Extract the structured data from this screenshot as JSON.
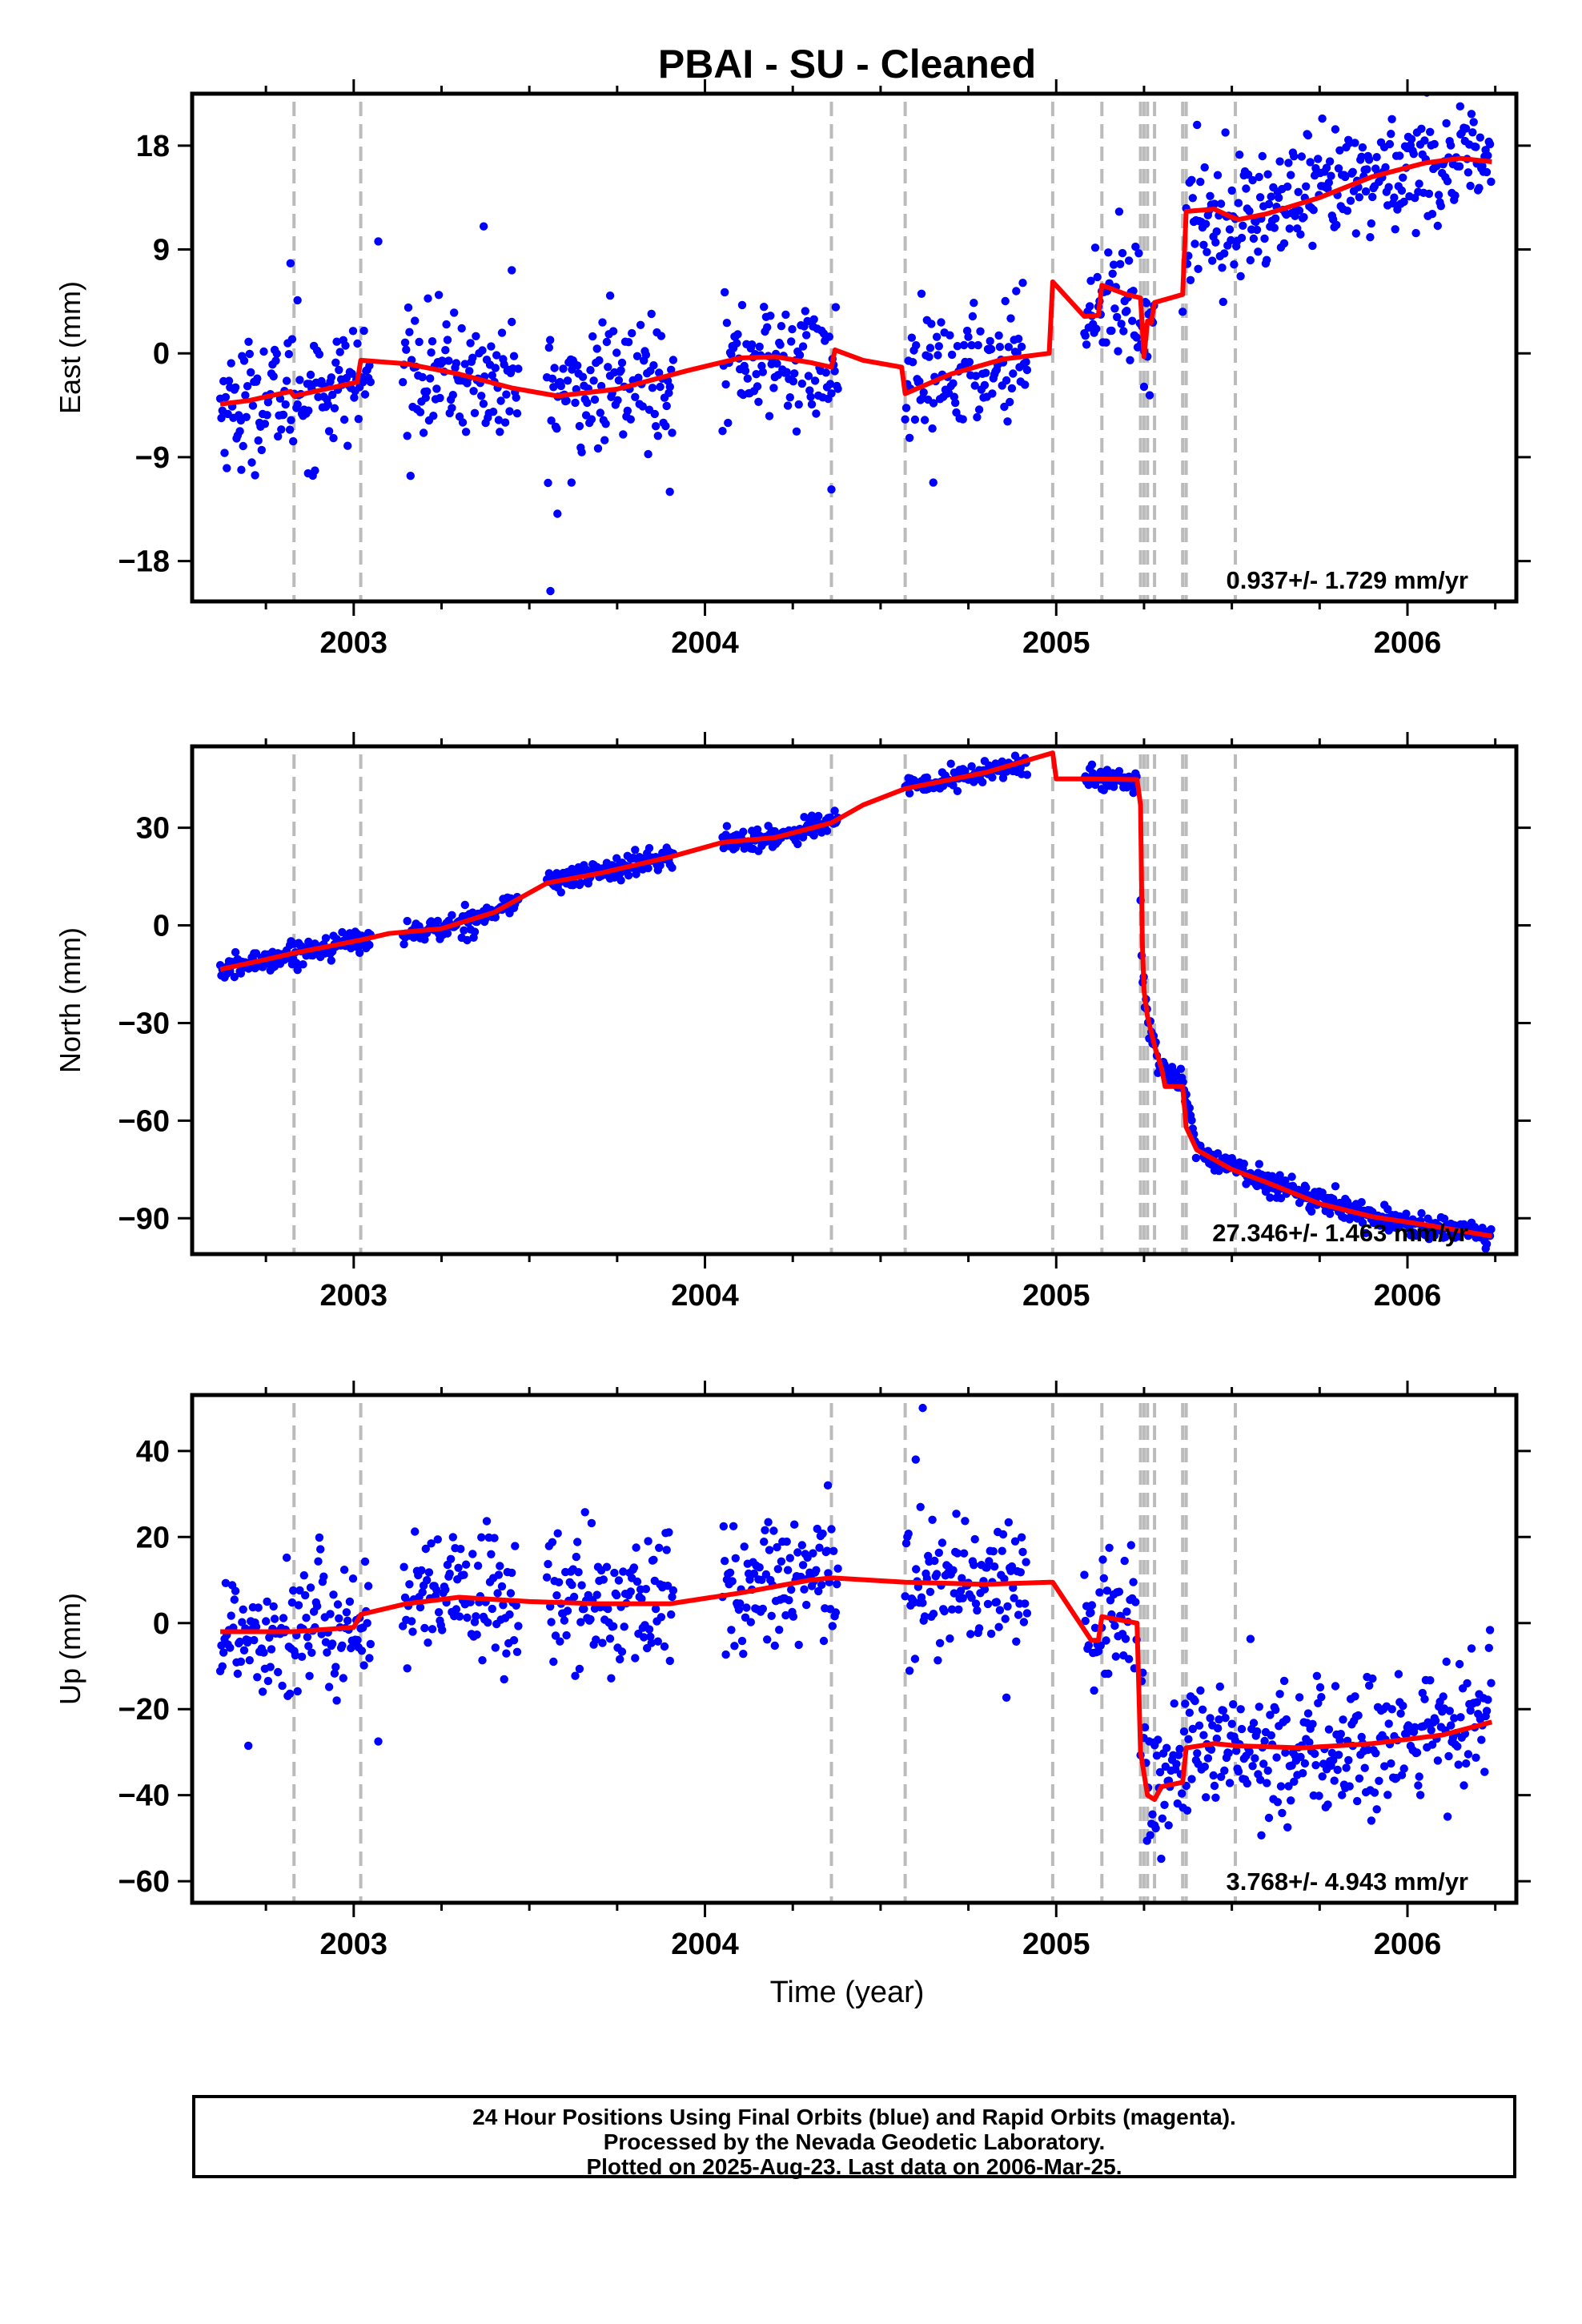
{
  "title": "PBAI  - SU - Cleaned",
  "x_axis_label": "Time (year)",
  "caption": {
    "line1": "24 Hour Positions Using Final Orbits (blue) and Rapid Orbits (magenta).",
    "line2": "Processed by the Nevada Geodetic Laboratory.",
    "line3": "Plotted on 2025-Aug-23. Last data on 2006-Mar-25."
  },
  "colors": {
    "observations": "#0000ff",
    "model": "#ff0000",
    "offset_lines": "#bbbbbb",
    "axes": "#000000"
  },
  "chart_data": [
    {
      "type": "scatter",
      "panel": "east",
      "ylabel": "East (mm)",
      "rate_label": "0.937+/- 1.729 mm/yr",
      "xlim": [
        2002.54,
        2006.31
      ],
      "ylim": [
        -21.5,
        22.5
      ],
      "x_ticks": [
        2003,
        2004,
        2005,
        2006
      ],
      "y_ticks": [
        -18,
        -9,
        0,
        9,
        18
      ],
      "offset_lines": [
        2002.83,
        2003.02,
        2004.36,
        2004.57,
        2004.99,
        2005.13,
        2005.24,
        2005.25,
        2005.26,
        2005.28,
        2005.36,
        2005.37,
        2005.51
      ],
      "segments": [
        [
          2002.62,
          2003.05
        ],
        [
          2003.14,
          2003.47
        ],
        [
          2003.55,
          2003.91
        ],
        [
          2004.05,
          2004.38
        ],
        [
          2004.57,
          2004.92
        ],
        [
          2005.08,
          2005.28
        ],
        [
          2005.37,
          2006.24
        ]
      ],
      "model_line": {
        "name": "model",
        "points": [
          [
            2002.62,
            -4.4
          ],
          [
            2002.7,
            -4.1
          ],
          [
            2002.82,
            -3.3
          ],
          [
            2002.83,
            -3.7
          ],
          [
            2003.01,
            -2.5
          ],
          [
            2003.02,
            -0.6
          ],
          [
            2003.15,
            -0.9
          ],
          [
            2003.3,
            -1.8
          ],
          [
            2003.45,
            -3.0
          ],
          [
            2003.58,
            -3.7
          ],
          [
            2003.75,
            -3.1
          ],
          [
            2003.95,
            -1.5
          ],
          [
            2004.1,
            -0.4
          ],
          [
            2004.2,
            -0.3
          ],
          [
            2004.3,
            -0.8
          ],
          [
            2004.36,
            -1.2
          ],
          [
            2004.37,
            0.3
          ],
          [
            2004.45,
            -0.6
          ],
          [
            2004.56,
            -1.2
          ],
          [
            2004.57,
            -3.5
          ],
          [
            2004.7,
            -1.8
          ],
          [
            2004.85,
            -0.5
          ],
          [
            2004.98,
            0.0
          ],
          [
            2004.99,
            6.2
          ],
          [
            2005.08,
            3.2
          ],
          [
            2005.12,
            3.3
          ],
          [
            2005.13,
            5.9
          ],
          [
            2005.2,
            5.1
          ],
          [
            2005.24,
            4.8
          ],
          [
            2005.25,
            -0.3
          ],
          [
            2005.26,
            2.8
          ],
          [
            2005.27,
            2.6
          ],
          [
            2005.28,
            4.4
          ],
          [
            2005.36,
            5.1
          ],
          [
            2005.37,
            12.3
          ],
          [
            2005.45,
            12.5
          ],
          [
            2005.5,
            11.8
          ],
          [
            2005.52,
            11.6
          ],
          [
            2005.6,
            12.1
          ],
          [
            2005.75,
            13.5
          ],
          [
            2005.9,
            15.3
          ],
          [
            2006.05,
            16.5
          ],
          [
            2006.15,
            16.9
          ],
          [
            2006.24,
            16.6
          ]
        ]
      },
      "trend_points": [
        [
          2002.62,
          -4.5
        ],
        [
          2002.83,
          -3.5
        ],
        [
          2003.02,
          -2.3
        ],
        [
          2003.1,
          -1.4
        ],
        [
          2003.3,
          -1.8
        ],
        [
          2003.5,
          -3.3
        ],
        [
          2003.7,
          -3.2
        ],
        [
          2003.9,
          -1.6
        ],
        [
          2004.1,
          -0.5
        ],
        [
          2004.3,
          -0.9
        ],
        [
          2004.57,
          -3.0
        ],
        [
          2004.9,
          0.0
        ],
        [
          2005.05,
          4.5
        ],
        [
          2005.2,
          5.3
        ],
        [
          2005.26,
          2.3
        ],
        [
          2005.4,
          12.0
        ],
        [
          2005.55,
          11.9
        ],
        [
          2005.75,
          13.6
        ],
        [
          2006.0,
          16.2
        ],
        [
          2006.24,
          16.8
        ]
      ],
      "scatter_sigma": 2.6,
      "outliers": [
        [
          2002.82,
          7.8
        ],
        [
          2002.84,
          4.6
        ],
        [
          2003.07,
          9.7
        ],
        [
          2003.37,
          11.0
        ],
        [
          2003.45,
          7.2
        ],
        [
          2003.73,
          5.0
        ],
        [
          2003.62,
          -11.2
        ],
        [
          2003.58,
          -13.9
        ],
        [
          2003.56,
          -20.6
        ],
        [
          2003.9,
          -12.0
        ],
        [
          2004.36,
          -11.8
        ],
        [
          2004.65,
          -11.2
        ],
        [
          2002.68,
          -10.1
        ],
        [
          2002.87,
          -10.4
        ],
        [
          2005.25,
          -2.9
        ],
        [
          2005.36,
          3.6
        ],
        [
          2006.15,
          21.4
        ]
      ]
    },
    {
      "type": "scatter",
      "panel": "north",
      "ylabel": "North (mm)",
      "rate_label": "27.346+/- 1.463 mm/yr",
      "xlim": [
        2002.54,
        2006.31
      ],
      "ylim": [
        -101,
        55
      ],
      "x_ticks": [
        2003,
        2004,
        2005,
        2006
      ],
      "y_ticks": [
        -90,
        -60,
        -30,
        0,
        30
      ],
      "offset_lines": [
        2002.83,
        2003.02,
        2004.36,
        2004.57,
        2004.99,
        2005.13,
        2005.24,
        2005.25,
        2005.26,
        2005.28,
        2005.36,
        2005.37,
        2005.51
      ],
      "segments": [
        [
          2002.62,
          2003.05
        ],
        [
          2003.14,
          2003.47
        ],
        [
          2003.55,
          2003.91
        ],
        [
          2004.05,
          2004.38
        ],
        [
          2004.57,
          2004.92
        ],
        [
          2005.08,
          2005.23
        ],
        [
          2005.24,
          2006.24
        ]
      ],
      "model_line": {
        "name": "model",
        "points": [
          [
            2002.62,
            -13.5
          ],
          [
            2002.75,
            -10.5
          ],
          [
            2002.83,
            -8.5
          ],
          [
            2003.02,
            -4.5
          ],
          [
            2003.1,
            -2.5
          ],
          [
            2003.25,
            -1.0
          ],
          [
            2003.4,
            4.0
          ],
          [
            2003.55,
            13.0
          ],
          [
            2003.7,
            16.0
          ],
          [
            2003.9,
            21.0
          ],
          [
            2004.05,
            25.5
          ],
          [
            2004.2,
            27.0
          ],
          [
            2004.36,
            31.5
          ],
          [
            2004.45,
            37.0
          ],
          [
            2004.57,
            42.0
          ],
          [
            2004.8,
            47.0
          ],
          [
            2004.99,
            53.0
          ],
          [
            2005.0,
            45.0
          ],
          [
            2005.1,
            45.0
          ],
          [
            2005.23,
            44.8
          ],
          [
            2005.24,
            37.0
          ],
          [
            2005.245,
            -5.0
          ],
          [
            2005.25,
            -20.0
          ],
          [
            2005.26,
            -28.0
          ],
          [
            2005.28,
            -37.0
          ],
          [
            2005.3,
            -44.0
          ],
          [
            2005.31,
            -49.5
          ],
          [
            2005.36,
            -49.5
          ],
          [
            2005.37,
            -62.0
          ],
          [
            2005.4,
            -69.0
          ],
          [
            2005.5,
            -75.0
          ],
          [
            2005.6,
            -79.0
          ],
          [
            2005.75,
            -85.5
          ],
          [
            2005.9,
            -89.5
          ],
          [
            2006.05,
            -92.0
          ],
          [
            2006.24,
            -95.5
          ]
        ]
      },
      "trend_points": [
        [
          2002.62,
          -14.0
        ],
        [
          2002.83,
          -8.5
        ],
        [
          2003.02,
          -4.5
        ],
        [
          2003.25,
          -1.0
        ],
        [
          2003.4,
          4.0
        ],
        [
          2003.55,
          13.0
        ],
        [
          2003.9,
          21.0
        ],
        [
          2004.05,
          25.5
        ],
        [
          2004.2,
          27.0
        ],
        [
          2004.36,
          32.0
        ],
        [
          2004.57,
          42.0
        ],
        [
          2004.8,
          47.0
        ],
        [
          2004.92,
          50.0
        ],
        [
          2005.08,
          45.0
        ],
        [
          2005.23,
          44.5
        ],
        [
          2005.245,
          -15.0
        ],
        [
          2005.26,
          -28.0
        ],
        [
          2005.3,
          -44.0
        ],
        [
          2005.36,
          -49.0
        ],
        [
          2005.4,
          -69.0
        ],
        [
          2005.6,
          -79.0
        ],
        [
          2005.9,
          -89.5
        ],
        [
          2006.24,
          -96.0
        ]
      ],
      "scatter_sigma": 1.8,
      "outliers": []
    },
    {
      "type": "scatter",
      "panel": "up",
      "ylabel": "Up (mm)",
      "rate_label": "3.768+/- 4.943 mm/yr",
      "xlim": [
        2002.54,
        2006.31
      ],
      "ylim": [
        -65,
        53
      ],
      "x_ticks": [
        2003,
        2004,
        2005,
        2006
      ],
      "y_ticks": [
        -60,
        -40,
        -20,
        0,
        20,
        40
      ],
      "offset_lines": [
        2002.83,
        2003.02,
        2004.36,
        2004.57,
        2004.99,
        2005.13,
        2005.24,
        2005.25,
        2005.26,
        2005.28,
        2005.36,
        2005.37,
        2005.51
      ],
      "segments": [
        [
          2002.62,
          2003.05
        ],
        [
          2003.14,
          2003.47
        ],
        [
          2003.55,
          2003.91
        ],
        [
          2004.05,
          2004.38
        ],
        [
          2004.57,
          2004.92
        ],
        [
          2005.08,
          2005.23
        ],
        [
          2005.24,
          2006.24
        ]
      ],
      "model_line": {
        "name": "model",
        "points": [
          [
            2002.62,
            -2.0
          ],
          [
            2002.83,
            -2.0
          ],
          [
            2003.0,
            -1.0
          ],
          [
            2003.02,
            2.0
          ],
          [
            2003.15,
            4.5
          ],
          [
            2003.3,
            6.0
          ],
          [
            2003.5,
            5.0
          ],
          [
            2003.7,
            4.5
          ],
          [
            2003.9,
            4.5
          ],
          [
            2004.1,
            7.0
          ],
          [
            2004.3,
            10.0
          ],
          [
            2004.36,
            10.5
          ],
          [
            2004.57,
            9.5
          ],
          [
            2004.8,
            9.0
          ],
          [
            2004.98,
            9.5
          ],
          [
            2004.99,
            9.5
          ],
          [
            2005.1,
            -4.0
          ],
          [
            2005.12,
            -4.0
          ],
          [
            2005.13,
            1.5
          ],
          [
            2005.23,
            0.0
          ],
          [
            2005.24,
            -30.0
          ],
          [
            2005.26,
            -40.0
          ],
          [
            2005.28,
            -41.0
          ],
          [
            2005.3,
            -38.0
          ],
          [
            2005.36,
            -37.0
          ],
          [
            2005.37,
            -29.0
          ],
          [
            2005.45,
            -28.0
          ],
          [
            2005.51,
            -28.5
          ],
          [
            2005.7,
            -29.0
          ],
          [
            2005.9,
            -28.0
          ],
          [
            2006.1,
            -26.0
          ],
          [
            2006.24,
            -23.0
          ]
        ]
      },
      "trend_points": [
        [
          2002.62,
          -2.0
        ],
        [
          2003.02,
          0.0
        ],
        [
          2003.3,
          6.5
        ],
        [
          2003.7,
          4.5
        ],
        [
          2004.1,
          7.0
        ],
        [
          2004.36,
          10.0
        ],
        [
          2004.57,
          10.0
        ],
        [
          2004.92,
          9.0
        ],
        [
          2005.1,
          2.0
        ],
        [
          2005.23,
          0.0
        ],
        [
          2005.26,
          -36.0
        ],
        [
          2005.3,
          -38.0
        ],
        [
          2005.4,
          -29.0
        ],
        [
          2005.7,
          -30.0
        ],
        [
          2006.0,
          -28.0
        ],
        [
          2006.24,
          -20.0
        ]
      ],
      "scatter_sigma": 8.0,
      "outliers": [
        [
          2004.62,
          50.0
        ],
        [
          2004.6,
          38.0
        ],
        [
          2002.7,
          -28.5
        ],
        [
          2003.07,
          -27.5
        ],
        [
          2005.32,
          -47.0
        ],
        [
          2005.28,
          -47.0
        ],
        [
          2004.35,
          32.0
        ]
      ]
    }
  ]
}
